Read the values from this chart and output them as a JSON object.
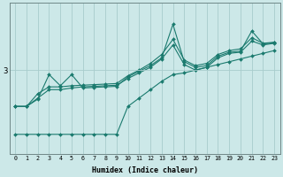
{
  "xlabel": "Humidex (Indice chaleur)",
  "background_color": "#cce8e8",
  "line_color": "#1a7a6e",
  "grid_color": "#a8cccc",
  "xlim": [
    -0.5,
    23.5
  ],
  "ylim": [
    1.5,
    4.2
  ],
  "ytick_val": 3,
  "xticks": [
    0,
    1,
    2,
    3,
    4,
    5,
    6,
    7,
    8,
    9,
    10,
    11,
    12,
    13,
    14,
    15,
    16,
    17,
    18,
    19,
    20,
    21,
    22,
    23
  ],
  "line1_x": [
    0,
    1,
    2,
    3,
    4,
    5,
    6,
    7,
    8,
    9,
    10,
    11,
    12,
    13,
    14,
    15,
    16,
    17,
    18,
    19,
    20,
    21,
    22,
    23
  ],
  "line1_y": [
    2.35,
    2.35,
    2.58,
    2.7,
    2.7,
    2.72,
    2.73,
    2.74,
    2.75,
    2.76,
    2.9,
    3.0,
    3.12,
    3.28,
    3.55,
    3.18,
    3.08,
    3.12,
    3.28,
    3.35,
    3.38,
    3.58,
    3.48,
    3.5
  ],
  "line2_x": [
    0,
    1,
    2,
    3,
    4,
    5,
    6,
    7,
    8,
    9,
    10,
    11,
    12,
    13,
    14,
    15,
    16,
    17,
    18,
    19,
    20,
    21,
    22,
    23
  ],
  "line2_y": [
    2.35,
    2.35,
    2.5,
    2.65,
    2.65,
    2.68,
    2.7,
    2.71,
    2.72,
    2.73,
    2.85,
    2.95,
    3.05,
    3.2,
    3.45,
    3.1,
    3.0,
    3.05,
    3.22,
    3.3,
    3.32,
    3.52,
    3.45,
    3.48
  ],
  "line3_x": [
    0,
    1,
    2,
    3,
    4,
    5,
    6,
    7,
    8,
    9,
    10,
    11,
    12,
    13,
    14,
    15,
    16,
    17,
    18,
    19,
    20,
    21,
    22,
    23
  ],
  "line3_y": [
    2.35,
    2.35,
    2.48,
    2.92,
    2.72,
    2.92,
    2.68,
    2.69,
    2.7,
    2.71,
    2.88,
    2.98,
    3.08,
    3.22,
    3.82,
    3.15,
    3.05,
    3.08,
    3.25,
    3.32,
    3.34,
    3.7,
    3.47,
    3.49
  ],
  "line4_x": [
    0,
    1,
    2,
    3,
    4,
    5,
    6,
    7,
    8,
    9,
    10,
    11,
    12,
    13,
    14,
    15,
    16,
    17,
    18,
    19,
    20,
    21,
    22,
    23
  ],
  "line4_y": [
    1.85,
    1.85,
    1.85,
    1.85,
    1.85,
    1.85,
    1.85,
    1.85,
    1.85,
    1.85,
    2.35,
    2.5,
    2.65,
    2.8,
    2.92,
    2.95,
    3.0,
    3.05,
    3.1,
    3.15,
    3.2,
    3.25,
    3.3,
    3.35
  ]
}
